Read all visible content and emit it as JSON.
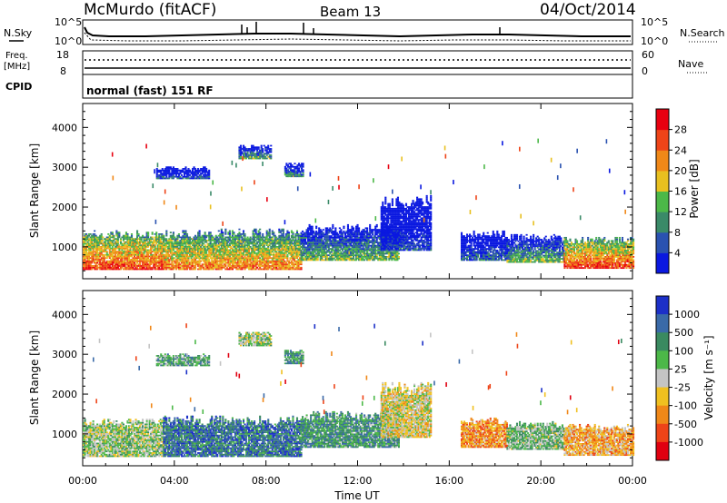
{
  "header": {
    "station": "McMurdo (fitACF)",
    "beam": "Beam 13",
    "date": "04/Oct/2014"
  },
  "status_panels": {
    "nsky_label": "N.Sky",
    "nsearch_label": "N.Search",
    "noise_ticks": [
      "10^5",
      "10^0"
    ],
    "freq_label": "Freq.",
    "freq_unit": "[MHz]",
    "freq_ticks": [
      "18",
      "8"
    ],
    "nave_label": "Nave",
    "nave_ticks": [
      "60",
      "0"
    ],
    "cpid_label": "CPID",
    "cpid_text": "normal (fast) 151 RF"
  },
  "chart_data": [
    {
      "type": "heatmap",
      "parameter": "power",
      "ylabel": "Slant Range [km]",
      "ylim": [
        200,
        4600
      ],
      "yticks": [
        1000,
        2000,
        3000,
        4000
      ],
      "xlim": [
        0,
        24
      ],
      "xticks": [
        0,
        4,
        8,
        12,
        16,
        20,
        24
      ],
      "colorbar_label": "Power [dB]",
      "colorbar_ticks": [
        "4",
        "8",
        "12",
        "16",
        "20",
        "24",
        "28"
      ],
      "colorbar_colors": [
        "#0a18e0",
        "#2a52b0",
        "#3a8a68",
        "#4cb848",
        "#e8c020",
        "#f08818",
        "#ee4418",
        "#e80010"
      ],
      "regions": [
        {
          "t": [
            0,
            3.5
          ],
          "r_min": 420,
          "r_max": 1400,
          "level": 0.85
        },
        {
          "t": [
            3.5,
            9.5
          ],
          "r_min": 420,
          "r_max": 1450,
          "level": 0.75
        },
        {
          "t": [
            9.5,
            13.8
          ],
          "r_min": 650,
          "r_max": 1550,
          "level": 0.45
        },
        {
          "t": [
            13,
            15.2
          ],
          "r_min": 900,
          "r_max": 2300,
          "level": 0.15
        },
        {
          "t": [
            16.5,
            18.5
          ],
          "r_min": 650,
          "r_max": 1400,
          "level": 0.25
        },
        {
          "t": [
            18.5,
            21
          ],
          "r_min": 600,
          "r_max": 1300,
          "level": 0.45
        },
        {
          "t": [
            21,
            24
          ],
          "r_min": 450,
          "r_max": 1250,
          "level": 0.85
        },
        {
          "t": [
            3.2,
            5.5
          ],
          "r_min": 2700,
          "r_max": 3000,
          "level": 0.2
        },
        {
          "t": [
            6.8,
            8.2
          ],
          "r_min": 3200,
          "r_max": 3550,
          "level": 0.4
        },
        {
          "t": [
            8.8,
            9.6
          ],
          "r_min": 2750,
          "r_max": 3100,
          "level": 0.35
        }
      ]
    },
    {
      "type": "heatmap",
      "parameter": "velocity",
      "ylabel": "Slant Range [km]",
      "ylim": [
        200,
        4600
      ],
      "yticks": [
        1000,
        2000,
        3000,
        4000
      ],
      "xlim": [
        0,
        24
      ],
      "xticks": [
        0,
        4,
        8,
        12,
        16,
        20,
        24
      ],
      "xlabel": "Time UT",
      "xticklabels": [
        "00:00",
        "04:00",
        "08:00",
        "12:00",
        "16:00",
        "20:00",
        "00:00"
      ],
      "colorbar_label": "Velocity [m s⁻¹]",
      "colorbar_ticks": [
        "1000",
        "500",
        "100",
        "25",
        "-25",
        "-100",
        "-500",
        "-1000"
      ],
      "colorbar_colors": [
        "#1c30c8",
        "#3a6aa8",
        "#3a8a60",
        "#4cb848",
        "#c4c4c4",
        "#f0c020",
        "#f08818",
        "#ee4418",
        "#e00010"
      ],
      "regions": [
        {
          "t": [
            0,
            3.5
          ],
          "r_min": 420,
          "r_max": 1400,
          "level": 0.45
        },
        {
          "t": [
            3.5,
            9.5
          ],
          "r_min": 420,
          "r_max": 1450,
          "level": 0.2
        },
        {
          "t": [
            9.5,
            13.8
          ],
          "r_min": 650,
          "r_max": 1550,
          "level": 0.3
        },
        {
          "t": [
            13,
            15.2
          ],
          "r_min": 900,
          "r_max": 2300,
          "level": 0.55
        },
        {
          "t": [
            16.5,
            18.5
          ],
          "r_min": 650,
          "r_max": 1400,
          "level": 0.7
        },
        {
          "t": [
            18.5,
            21
          ],
          "r_min": 600,
          "r_max": 1300,
          "level": 0.4
        },
        {
          "t": [
            21,
            24
          ],
          "r_min": 450,
          "r_max": 1250,
          "level": 0.65
        },
        {
          "t": [
            3.2,
            5.5
          ],
          "r_min": 2700,
          "r_max": 3000,
          "level": 0.35
        },
        {
          "t": [
            6.8,
            8.2
          ],
          "r_min": 3200,
          "r_max": 3550,
          "level": 0.45
        },
        {
          "t": [
            8.8,
            9.6
          ],
          "r_min": 2750,
          "r_max": 3100,
          "level": 0.3
        }
      ]
    }
  ]
}
